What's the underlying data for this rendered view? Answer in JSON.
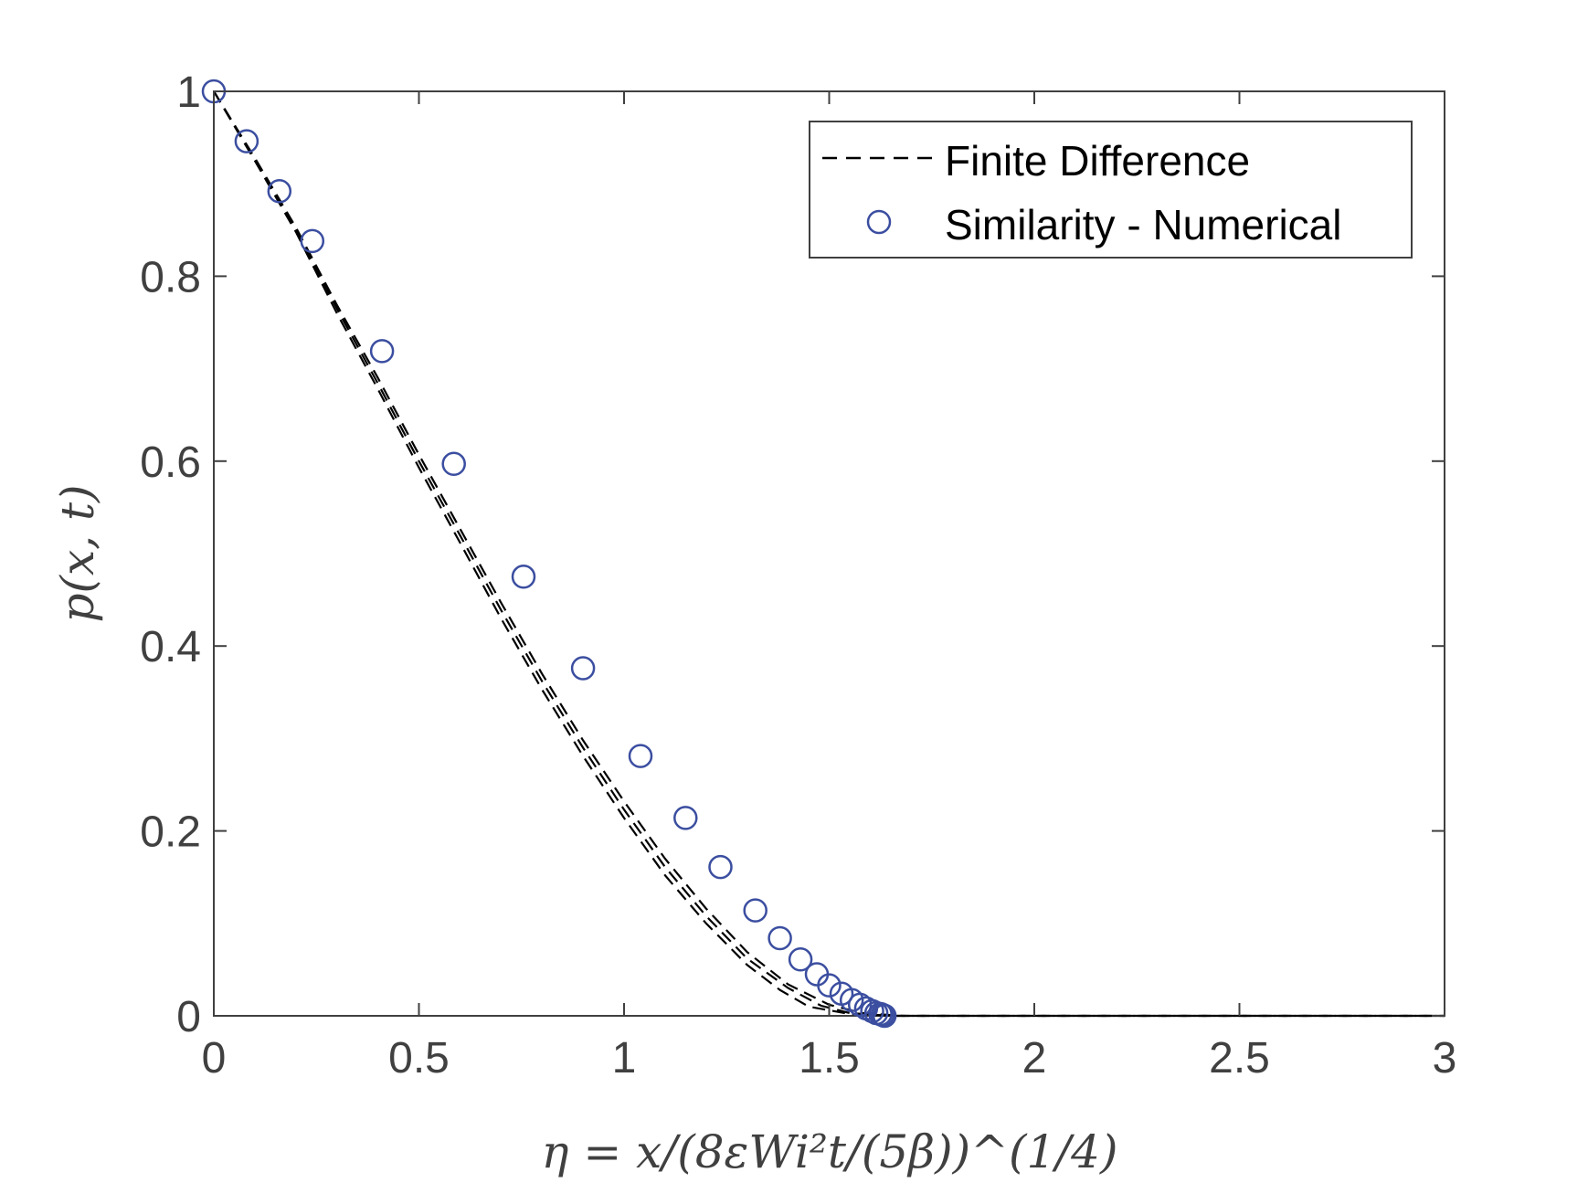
{
  "chart_data": {
    "type": "line",
    "title": "",
    "xlabel": "η = x/(8εWi²t/(5β))^(1/4)",
    "ylabel": "p(x, t)",
    "xlim": [
      0,
      3
    ],
    "ylim": [
      0,
      1
    ],
    "xticks": [
      0,
      0.5,
      1,
      1.5,
      2,
      2.5,
      3
    ],
    "xtick_labels": [
      "0",
      "0.5",
      "1",
      "1.5",
      "2",
      "2.5",
      "3"
    ],
    "yticks": [
      0,
      0.2,
      0.4,
      0.6,
      0.8,
      1
    ],
    "ytick_labels": [
      "0",
      "0.2",
      "0.4",
      "0.6",
      "0.8",
      "1"
    ],
    "grid": false,
    "legend_position": "top-right",
    "colors": {
      "finite_difference": "#000000",
      "similarity": "#3b4ea0",
      "axis": "#404040"
    },
    "series": [
      {
        "name": "Finite Difference",
        "style": "dashed",
        "curves": [
          {
            "x": [
              0,
              0.1,
              0.2,
              0.3,
              0.4,
              0.5,
              0.6,
              0.7,
              0.8,
              0.9,
              1.0,
              1.1,
              1.2,
              1.3,
              1.38,
              1.45,
              1.55,
              1.65,
              1.8,
              2.0,
              2.5,
              3.0
            ],
            "y": [
              1.0,
              0.925,
              0.848,
              0.76,
              0.678,
              0.593,
              0.512,
              0.43,
              0.353,
              0.281,
              0.214,
              0.152,
              0.1,
              0.055,
              0.028,
              0.01,
              0.002,
              0.0,
              0.0,
              0.0,
              0.0,
              0.0
            ]
          },
          {
            "x": [
              0,
              0.1,
              0.2,
              0.3,
              0.4,
              0.5,
              0.6,
              0.7,
              0.8,
              0.9,
              1.0,
              1.1,
              1.2,
              1.3,
              1.4,
              1.48,
              1.55,
              1.65,
              1.8,
              2.0,
              2.5,
              3.0
            ],
            "y": [
              1.0,
              0.927,
              0.851,
              0.765,
              0.684,
              0.6,
              0.52,
              0.439,
              0.362,
              0.29,
              0.223,
              0.161,
              0.108,
              0.062,
              0.03,
              0.011,
              0.003,
              0.0,
              0.0,
              0.0,
              0.0,
              0.0
            ]
          },
          {
            "x": [
              0,
              0.1,
              0.2,
              0.3,
              0.4,
              0.5,
              0.6,
              0.7,
              0.8,
              0.9,
              1.0,
              1.1,
              1.2,
              1.3,
              1.4,
              1.5,
              1.58,
              1.68,
              1.8,
              2.0,
              2.5,
              3.0
            ],
            "y": [
              1.0,
              0.928,
              0.853,
              0.769,
              0.69,
              0.607,
              0.527,
              0.447,
              0.37,
              0.298,
              0.232,
              0.17,
              0.116,
              0.069,
              0.034,
              0.012,
              0.003,
              0.0,
              0.0,
              0.0,
              0.0,
              0.0
            ]
          }
        ]
      },
      {
        "name": "Similarity - Numerical",
        "style": "markers",
        "marker": "circle",
        "x": [
          0,
          0.08,
          0.16,
          0.24,
          0.41,
          0.585,
          0.755,
          0.9,
          1.04,
          1.15,
          1.235,
          1.32,
          1.38,
          1.43,
          1.47,
          1.5,
          1.53,
          1.555,
          1.575,
          1.59,
          1.605,
          1.615,
          1.625,
          1.63,
          1.635
        ],
        "y": [
          1.0,
          0.946,
          0.892,
          0.838,
          0.719,
          0.597,
          0.475,
          0.376,
          0.281,
          0.214,
          0.161,
          0.114,
          0.084,
          0.061,
          0.045,
          0.033,
          0.024,
          0.017,
          0.012,
          0.008,
          0.005,
          0.003,
          0.002,
          0.001,
          0.0
        ]
      }
    ]
  }
}
